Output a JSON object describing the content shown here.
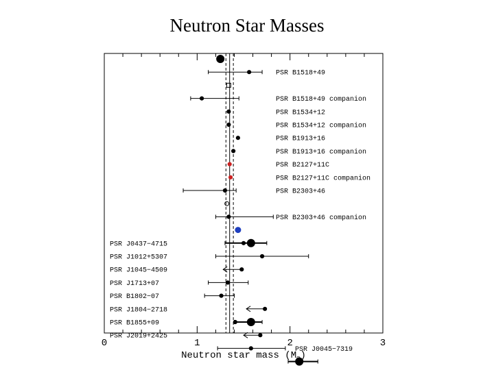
{
  "chart_data": {
    "type": "scatter",
    "title": "Neutron Star Masses",
    "xlabel": "Neutron star mass (M",
    "xlabel_sub": "⊙",
    "xlabel_close": ")",
    "xlim": [
      0,
      3
    ],
    "xticks": [
      0,
      1,
      2,
      3
    ],
    "xtick_labels": [
      "0",
      "1",
      "2",
      "3"
    ],
    "reference_lines": {
      "solid": [
        1.35
      ],
      "dashed": [
        1.31,
        1.39
      ]
    },
    "colors": {
      "marker": "#000000",
      "highlight_red": "#cc2222",
      "highlight_blue": "#1f3fbf"
    },
    "rows": [
      {
        "label": "",
        "side": "none",
        "points": [
          {
            "x": 1.25,
            "size": "large",
            "sym": "circle"
          }
        ]
      },
      {
        "label": "PSR B1518+49",
        "side": "right",
        "points": [
          {
            "x": 1.56,
            "lo": 1.12,
            "hi": 1.7,
            "size": "small",
            "sym": "circle"
          }
        ]
      },
      {
        "label": "",
        "side": "none",
        "points": [
          {
            "x": 1.34,
            "size": "small",
            "sym": "square"
          }
        ]
      },
      {
        "label": "PSR B1518+49 companion",
        "side": "right",
        "points": [
          {
            "x": 1.05,
            "lo": 0.93,
            "hi": 1.45,
            "size": "small",
            "sym": "circle"
          }
        ]
      },
      {
        "label": "PSR B1534+12",
        "side": "right",
        "points": [
          {
            "x": 1.34,
            "size": "small",
            "sym": "circle"
          }
        ]
      },
      {
        "label": "PSR B1534+12 companion",
        "side": "right",
        "points": [
          {
            "x": 1.34,
            "size": "small",
            "sym": "circle"
          }
        ]
      },
      {
        "label": "PSR B1913+16",
        "side": "right",
        "points": [
          {
            "x": 1.44,
            "size": "small",
            "sym": "circle"
          }
        ]
      },
      {
        "label": "PSR B1913+16 companion",
        "side": "right",
        "points": [
          {
            "x": 1.39,
            "size": "small",
            "sym": "circle"
          }
        ]
      },
      {
        "label": "PSR B2127+11C",
        "side": "right",
        "points": [
          {
            "x": 1.35,
            "size": "small",
            "sym": "circle",
            "color": "red"
          }
        ]
      },
      {
        "label": "PSR B2127+11C companion",
        "side": "right",
        "points": [
          {
            "x": 1.36,
            "size": "small",
            "sym": "circle",
            "color": "red"
          }
        ]
      },
      {
        "label": "PSR B2303+46",
        "side": "right",
        "points": [
          {
            "x": 1.3,
            "lo": 0.85,
            "hi": 1.42,
            "size": "small",
            "sym": "circle"
          }
        ]
      },
      {
        "label": "",
        "side": "none",
        "points": [
          {
            "x": 1.32,
            "size": "small",
            "sym": "open-circle"
          }
        ]
      },
      {
        "label": "PSR B2303+46 companion",
        "side": "right",
        "points": [
          {
            "x": 1.34,
            "lo": 1.2,
            "hi": 1.82,
            "size": "small",
            "sym": "circle"
          }
        ]
      },
      {
        "label": "",
        "side": "none",
        "points": [
          {
            "x": 1.44,
            "size": "medium",
            "sym": "circle",
            "color": "blue"
          }
        ]
      },
      {
        "label": "PSR J0437−4715",
        "side": "left",
        "points": [
          {
            "x": 1.58,
            "lo": 1.3,
            "hi": 1.75,
            "size": "large",
            "sym": "circle",
            "thick": true
          },
          {
            "x": 1.5,
            "size": "small",
            "sym": "circle"
          }
        ]
      },
      {
        "label": "PSR J1012+5307",
        "side": "left",
        "points": [
          {
            "x": 1.7,
            "lo": 1.2,
            "hi": 2.2,
            "size": "small",
            "sym": "circle"
          }
        ]
      },
      {
        "label": "PSR J1045−4509",
        "side": "left",
        "points": [
          {
            "x": 1.48,
            "size": "small",
            "sym": "circle",
            "arrow_to": 1.28
          }
        ]
      },
      {
        "label": "PSR J1713+07",
        "side": "left",
        "points": [
          {
            "x": 1.33,
            "lo": 1.12,
            "hi": 1.55,
            "size": "small",
            "sym": "circle"
          }
        ]
      },
      {
        "label": "PSR B1802−07",
        "side": "left",
        "points": [
          {
            "x": 1.26,
            "lo": 1.08,
            "hi": 1.4,
            "size": "small",
            "sym": "circle"
          }
        ]
      },
      {
        "label": "PSR J1804−2718",
        "side": "left",
        "points": [
          {
            "x": 1.73,
            "size": "small",
            "sym": "circle",
            "arrow_to": 1.53
          }
        ]
      },
      {
        "label": "PSR B1855+09",
        "side": "left",
        "points": [
          {
            "x": 1.58,
            "lo": 1.4,
            "hi": 1.7,
            "size": "large",
            "sym": "circle",
            "thick": true
          },
          {
            "x": 1.41,
            "size": "small",
            "sym": "circle"
          }
        ]
      },
      {
        "label": "PSR J2019+2425",
        "side": "left",
        "points": [
          {
            "x": 1.68,
            "size": "small",
            "sym": "circle",
            "arrow_to": 1.5
          }
        ]
      },
      {
        "label": "PSR J0045−7319",
        "side": "label-above",
        "points": [
          {
            "x": 1.58,
            "lo": 1.22,
            "hi": 1.95,
            "size": "small",
            "sym": "circle"
          }
        ]
      },
      {
        "label": "",
        "side": "none",
        "points": [
          {
            "x": 2.1,
            "lo": 1.98,
            "hi": 2.3,
            "size": "large",
            "sym": "circle",
            "thick": true
          }
        ]
      }
    ]
  }
}
